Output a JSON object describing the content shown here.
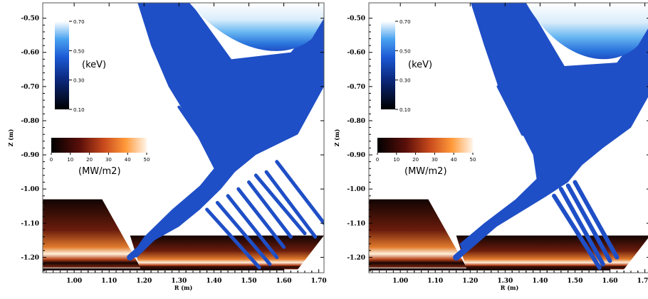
{
  "chart_data": [
    {
      "type": "heatmap",
      "xlabel": "R (m)",
      "ylabel": "Z (m)",
      "xlim": [
        0.91,
        1.715
      ],
      "ylim": [
        -1.245,
        -0.455
      ],
      "x_ticks": [
        "1.00",
        "1.10",
        "1.20",
        "1.30",
        "1.40",
        "1.50",
        "1.60",
        "1.70"
      ],
      "y_ticks": [
        "-0.50",
        "-0.60",
        "-0.70",
        "-0.80",
        "-0.90",
        "-1.00",
        "-1.10",
        "-1.20"
      ],
      "temperature_colorbar": {
        "unit": "(keV)",
        "ticks": [
          "0.70",
          "0.50",
          "0.30",
          "0.10"
        ],
        "range": [
          0.1,
          0.7
        ]
      },
      "heatflux_colorbar": {
        "unit": "(MW/m2)",
        "ticks": [
          "0",
          "10",
          "20",
          "30",
          "40",
          "50"
        ],
        "range": [
          0,
          50
        ]
      },
      "colors": {
        "plasma": "#1f4fc6",
        "plasma_hot": "#ffffff",
        "flux_low": "#000000",
        "flux_high": "#fff5ea"
      }
    },
    {
      "type": "heatmap",
      "xlabel": "R (m)",
      "ylabel": "Z (m)",
      "xlim": [
        0.91,
        1.715
      ],
      "ylim": [
        -1.245,
        -0.455
      ],
      "x_ticks": [
        "1.00",
        "1.10",
        "1.20",
        "1.30",
        "1.40",
        "1.50",
        "1.60",
        "1.70"
      ],
      "y_ticks": [
        "-0.50",
        "-0.60",
        "-0.70",
        "-0.80",
        "-0.90",
        "-1.00",
        "-1.10",
        "-1.20"
      ],
      "temperature_colorbar": {
        "unit": "(keV)",
        "ticks": [
          "0.70",
          "0.50",
          "0.30",
          "0.10"
        ],
        "range": [
          0.1,
          0.7
        ]
      },
      "heatflux_colorbar": {
        "unit": "(MW/m2)",
        "ticks": [
          "0",
          "10",
          "20",
          "30",
          "40",
          "50"
        ],
        "range": [
          0,
          50
        ]
      },
      "colors": {
        "plasma": "#1f4fc6",
        "plasma_hot": "#ffffff",
        "flux_low": "#000000",
        "flux_high": "#fff5ea"
      }
    }
  ]
}
